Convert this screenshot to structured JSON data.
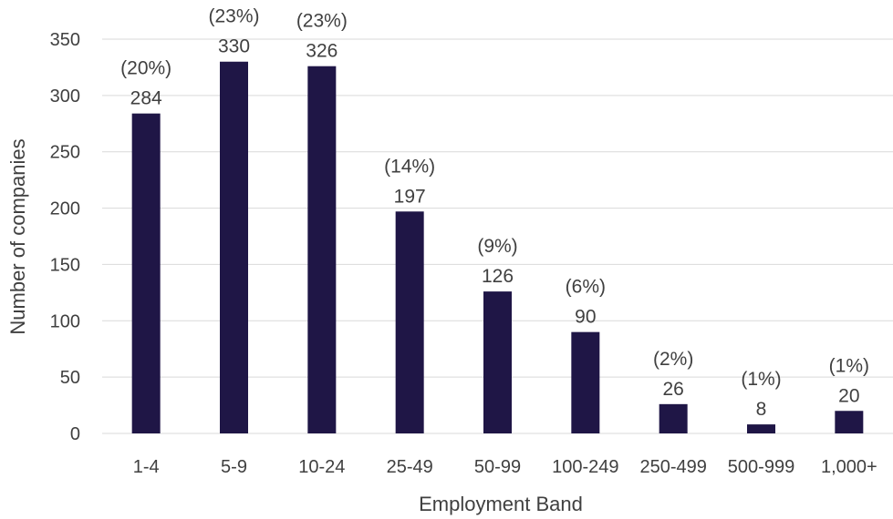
{
  "chart_data": {
    "type": "bar",
    "categories": [
      "1-4",
      "5-9",
      "10-24",
      "25-49",
      "50-99",
      "100-249",
      "250-499",
      "500-999",
      "1,000+"
    ],
    "series": [
      {
        "values": [
          284,
          330,
          326,
          197,
          126,
          90,
          26,
          8,
          20
        ],
        "data_labels": [
          "284",
          "330",
          "326",
          "197",
          "126",
          "90",
          "26",
          "8",
          "20"
        ],
        "percent_labels": [
          "(20%)",
          "(23%)",
          "(23%)",
          "(14%)",
          "(9%)",
          "(6%)",
          "(2%)",
          "(1%)",
          "(1%)"
        ]
      }
    ],
    "xlabel": "Employment Band",
    "ylabel": "Number of companies",
    "ylim": [
      0,
      350
    ],
    "yticks": [
      0,
      50,
      100,
      150,
      200,
      250,
      300,
      350
    ],
    "grid": true,
    "legend": "none",
    "colors": {
      "bar": "#1f1646",
      "gridline": "#d9d9d9",
      "text": "#404040"
    }
  }
}
